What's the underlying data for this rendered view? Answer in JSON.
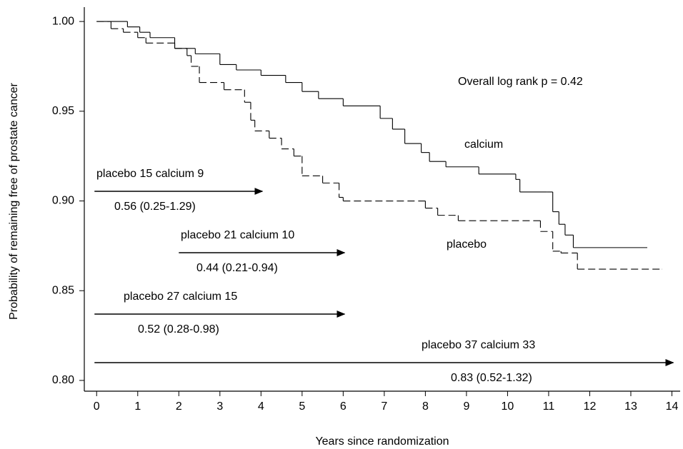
{
  "chart_data": {
    "type": "step",
    "xlabel": "Years since randomization",
    "ylabel": "Probability of remaining free of prostate cancer",
    "xlim": [
      -0.3,
      14.2
    ],
    "ylim": [
      0.794,
      1.008
    ],
    "xticks": [
      0,
      1,
      2,
      3,
      4,
      5,
      6,
      7,
      8,
      9,
      10,
      11,
      12,
      13,
      14
    ],
    "yticks": [
      {
        "value": 0.8,
        "label": "0.80"
      },
      {
        "value": 0.85,
        "label": "0.85"
      },
      {
        "value": 0.9,
        "label": "0.90"
      },
      {
        "value": 0.95,
        "label": "0.95"
      },
      {
        "value": 1.0,
        "label": "1.00"
      }
    ],
    "series": [
      {
        "name": "calcium",
        "color": "#000000",
        "dashed": false,
        "x": [
          0,
          0.75,
          1.05,
          1.3,
          1.9,
          2.4,
          3.0,
          3.4,
          4.0,
          4.6,
          5.0,
          5.4,
          6.0,
          6.9,
          7.2,
          7.5,
          7.9,
          8.1,
          8.5,
          9.3,
          10.2,
          10.3,
          10.95,
          11.1,
          11.25,
          11.4,
          11.6,
          13.4
        ],
        "values": [
          1.0,
          0.997,
          0.994,
          0.991,
          0.985,
          0.982,
          0.976,
          0.973,
          0.97,
          0.966,
          0.961,
          0.957,
          0.953,
          0.946,
          0.94,
          0.932,
          0.927,
          0.922,
          0.919,
          0.915,
          0.912,
          0.905,
          0.905,
          0.894,
          0.887,
          0.881,
          0.874,
          0.874
        ]
      },
      {
        "name": "placebo",
        "color": "#000000",
        "dashed": true,
        "x": [
          0,
          0.35,
          0.65,
          1.0,
          1.2,
          1.9,
          2.2,
          2.3,
          2.5,
          3.1,
          3.6,
          3.75,
          3.85,
          4.2,
          4.5,
          4.8,
          5.0,
          5.5,
          5.9,
          6.0,
          8.0,
          8.3,
          8.8,
          10.8,
          11.1,
          11.3,
          11.7,
          13.75
        ],
        "values": [
          1.0,
          0.996,
          0.994,
          0.991,
          0.988,
          0.985,
          0.981,
          0.975,
          0.966,
          0.962,
          0.955,
          0.945,
          0.939,
          0.935,
          0.929,
          0.925,
          0.914,
          0.91,
          0.902,
          0.9,
          0.896,
          0.892,
          0.889,
          0.883,
          0.872,
          0.871,
          0.862,
          0.862
        ]
      }
    ],
    "annotations": [
      {
        "text": "placebo 15 calcium 9",
        "estimate": "0.56 (0.25-1.29)",
        "start": 0,
        "end": 4
      },
      {
        "text": "placebo 21 calcium 10",
        "estimate": "0.44 (0.21-0.94)",
        "start": 2,
        "end": 6
      },
      {
        "text": "placebo 27 calcium 15",
        "estimate": "0.52 (0.28-0.98)",
        "start": 0,
        "end": 6
      },
      {
        "text": "placebo 37  calcium 33",
        "estimate": "0.83 (0.52-1.32)",
        "start": 0,
        "end": 14
      }
    ],
    "note": "Overall log rank p = 0.42"
  }
}
